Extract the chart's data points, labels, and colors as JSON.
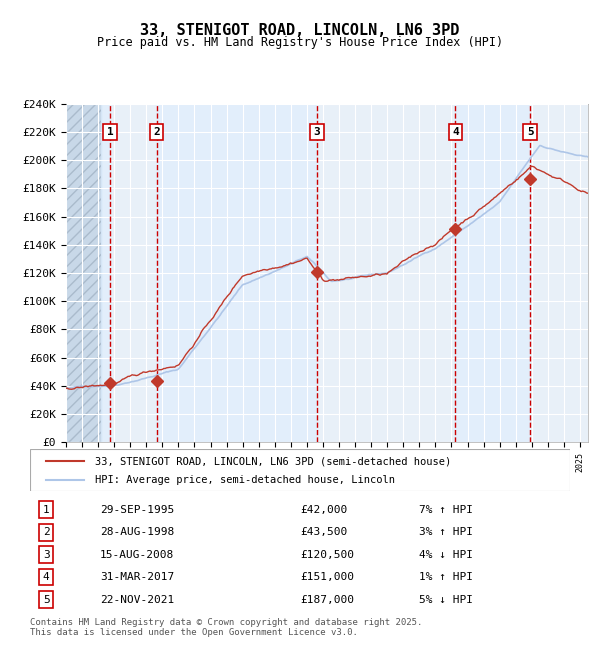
{
  "title": "33, STENIGOT ROAD, LINCOLN, LN6 3PD",
  "subtitle": "Price paid vs. HM Land Registry's House Price Index (HPI)",
  "ylabel_values": [
    "£0",
    "£20K",
    "£40K",
    "£60K",
    "£80K",
    "£100K",
    "£120K",
    "£140K",
    "£160K",
    "£180K",
    "£200K",
    "£220K",
    "£240K"
  ],
  "ylim": [
    0,
    240000
  ],
  "yticks": [
    0,
    20000,
    40000,
    60000,
    80000,
    100000,
    120000,
    140000,
    160000,
    180000,
    200000,
    220000,
    240000
  ],
  "x_start_year": 1993,
  "x_end_year": 2025,
  "hpi_color": "#aec6e8",
  "price_color": "#c0392b",
  "bg_color": "#ddeeff",
  "plot_bg": "#e8f0f8",
  "hatched_bg": "#c8d8e8",
  "grid_color": "#ffffff",
  "vline_color_red": "#cc0000",
  "vline_color_blue": "#7799cc",
  "sale_points": [
    {
      "year": 1995.74,
      "price": 42000,
      "label": "1"
    },
    {
      "year": 1998.65,
      "price": 43500,
      "label": "2"
    },
    {
      "year": 2008.62,
      "price": 120500,
      "label": "3"
    },
    {
      "year": 2017.25,
      "price": 151000,
      "label": "4"
    },
    {
      "year": 2021.9,
      "price": 187000,
      "label": "5"
    }
  ],
  "table_rows": [
    {
      "num": "1",
      "date": "29-SEP-1995",
      "price": "£42,000",
      "hpi": "7% ↑ HPI"
    },
    {
      "num": "2",
      "date": "28-AUG-1998",
      "price": "£43,500",
      "hpi": "3% ↑ HPI"
    },
    {
      "num": "3",
      "date": "15-AUG-2008",
      "price": "£120,500",
      "hpi": "4% ↓ HPI"
    },
    {
      "num": "4",
      "date": "31-MAR-2017",
      "price": "£151,000",
      "hpi": "1% ↑ HPI"
    },
    {
      "num": "5",
      "date": "22-NOV-2021",
      "price": "£187,000",
      "hpi": "5% ↓ HPI"
    }
  ],
  "legend_line1": "33, STENIGOT ROAD, LINCOLN, LN6 3PD (semi-detached house)",
  "legend_line2": "HPI: Average price, semi-detached house, Lincoln",
  "footer": "Contains HM Land Registry data © Crown copyright and database right 2025.\nThis data is licensed under the Open Government Licence v3.0."
}
